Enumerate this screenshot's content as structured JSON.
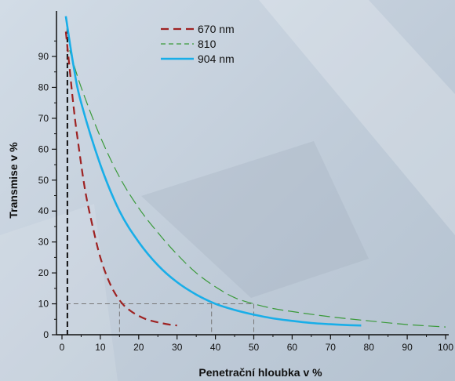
{
  "chart_data": {
    "type": "line",
    "xlabel": "Penetrační hloubka v %",
    "ylabel": "Transmise v %",
    "xlim": [
      0,
      100
    ],
    "ylim": [
      0,
      100
    ],
    "x_ticks": [
      "0",
      "10",
      "20",
      "30",
      "40",
      "50",
      "60",
      "70",
      "80",
      "90",
      "100"
    ],
    "y_ticks": [
      "0",
      "10",
      "20",
      "30",
      "40",
      "50",
      "60",
      "70",
      "80",
      "90"
    ],
    "legend_position": "top-center",
    "series": [
      {
        "name": "670 nm",
        "color": "#9e2222",
        "style": "dashed",
        "x": [
          1,
          2,
          3,
          4,
          6,
          8,
          10,
          12,
          14,
          16,
          18,
          20,
          22,
          25,
          28,
          30
        ],
        "y": [
          98,
          86,
          74,
          64,
          47,
          35,
          25,
          18,
          13,
          9.7,
          7.6,
          6.1,
          5,
          4,
          3.3,
          3
        ]
      },
      {
        "name": "810",
        "color": "#3a9a3a",
        "style": "dashed",
        "x": [
          2,
          5,
          10,
          15,
          20,
          25,
          30,
          35,
          40,
          45,
          50,
          55,
          60,
          70,
          80,
          90,
          100
        ],
        "y": [
          92,
          80,
          64,
          51,
          41,
          33,
          26,
          20,
          15.5,
          12,
          10,
          8.5,
          7.5,
          5.8,
          4.5,
          3.3,
          2.5
        ]
      },
      {
        "name": "904 nm",
        "color": "#19aee8",
        "style": "solid",
        "x": [
          1,
          3,
          5,
          10,
          15,
          20,
          25,
          30,
          35,
          40,
          45,
          50,
          55,
          60,
          65,
          70,
          75,
          78
        ],
        "y": [
          103,
          87,
          75,
          55,
          40,
          30,
          22.5,
          17,
          13,
          10,
          8,
          6.5,
          5.3,
          4.5,
          3.8,
          3.4,
          3.1,
          3
        ]
      }
    ],
    "reference_lines": {
      "y": 10,
      "x_marks": [
        15,
        39,
        50
      ],
      "x_start": 1
    }
  }
}
